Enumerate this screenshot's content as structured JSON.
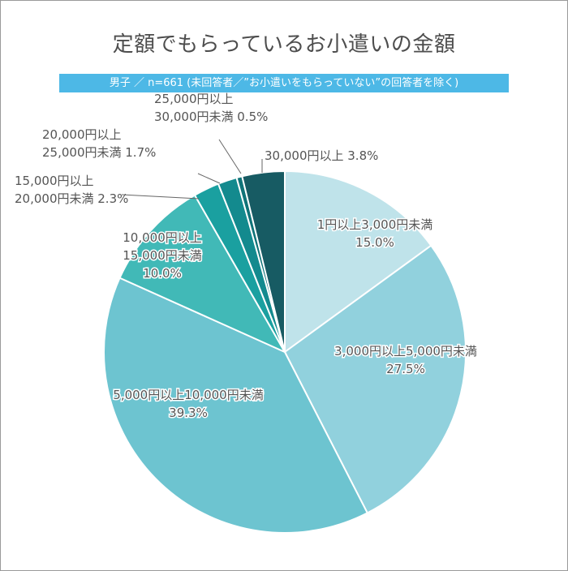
{
  "chart_data": {
    "type": "pie",
    "title": "定額でもらっているお小遣いの金額",
    "subtitle": "男子 ／ n=661 (未回答者／”お小遣いをもらっていない”の回答者を除く)",
    "start_angle_deg": 0,
    "direction": "clockwise",
    "slices": [
      {
        "label": [
          "1円以上3,000円未満"
        ],
        "value": 15.0,
        "display": "15.0%",
        "color": "#bfe3ea",
        "label_style": "inside-outline"
      },
      {
        "label": [
          "3,000円以上5,000円未満"
        ],
        "value": 27.5,
        "display": "27.5%",
        "color": "#91d1dd",
        "label_style": "inside-outline"
      },
      {
        "label": [
          "5,000円以上10,000円未満"
        ],
        "value": 39.3,
        "display": "39.3%",
        "color": "#6dc4d0",
        "label_style": "inside-outline"
      },
      {
        "label": [
          "10,000円以上",
          "15,000円未満"
        ],
        "value": 10.0,
        "display": "10.0%",
        "color": "#41b9b7",
        "label_style": "inside-outline"
      },
      {
        "label": [
          "15,000円以上",
          "20,000円未満"
        ],
        "value": 2.3,
        "display": "2.3%",
        "color": "#1aa0a0",
        "label_style": "outside"
      },
      {
        "label": [
          "20,000円以上",
          "25,000円未満"
        ],
        "value": 1.7,
        "display": "1.7%",
        "color": "#138a8e",
        "label_style": "outside"
      },
      {
        "label": [
          "25,000円以上",
          "30,000円未満"
        ],
        "value": 0.5,
        "display": "0.5%",
        "color": "#0f7378",
        "label_style": "outside"
      },
      {
        "label": [
          "30,000円以上"
        ],
        "value": 3.8,
        "display": "3.8%",
        "color": "#175b63",
        "label_style": "outside"
      }
    ]
  }
}
